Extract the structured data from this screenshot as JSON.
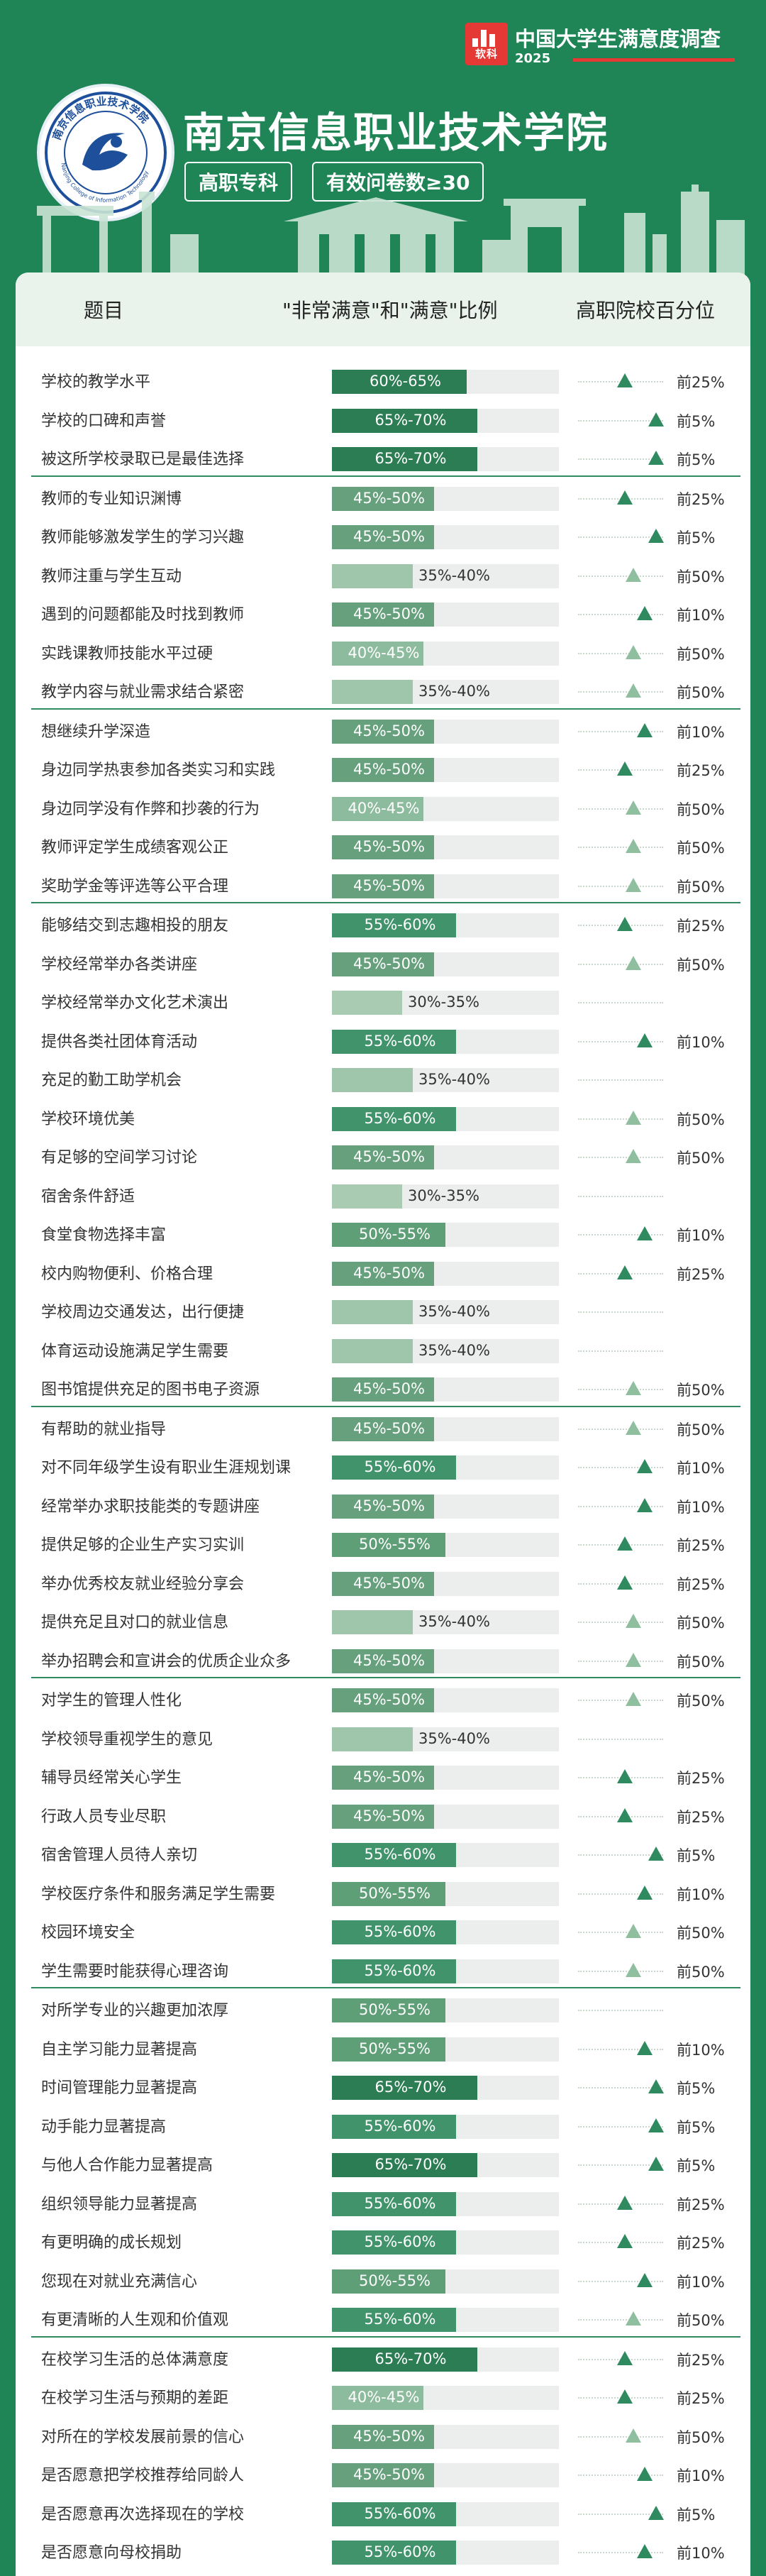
{
  "brand": {
    "logo_text": "软科",
    "title": "中国大学生满意度调查",
    "year": "2025"
  },
  "school": {
    "name": "南京信息职业技术学院",
    "seal_text": "南京信息职业技术学院",
    "seal_text_en": "Nanjing College of Information Technology",
    "tag_level": "高职专科",
    "tag_sample": "有效问卷数≥30"
  },
  "table": {
    "col_question": "题目",
    "col_ratio": "\"非常满意\"和\"满意\"比例",
    "col_percentile": "高职院校百分位"
  },
  "colors": {
    "background": "#1f8557",
    "bar_65_70": "#2c7d54",
    "bar_60_65": "#2c7d54",
    "bar_55_60": "#40936a",
    "bar_50_55": "#5f9f78",
    "bar_45_50": "#66a07d",
    "bar_40_45": "#8dbb9d",
    "bar_35_40": "#9fc5aa",
    "bar_30_35": "#a9cbb2",
    "triangle_strong": "#2f8a5f",
    "triangle_light": "#8fbf9f",
    "accent": "#e53935"
  },
  "rows": [
    {
      "q": "学校的教学水平",
      "r": "60%-65%",
      "p": "前25%",
      "g": 1
    },
    {
      "q": "学校的口碑和声誉",
      "r": "65%-70%",
      "p": "前5%"
    },
    {
      "q": "被这所学校录取已是最佳选择",
      "r": "65%-70%",
      "p": "前5%"
    },
    {
      "q": "教师的专业知识渊博",
      "r": "45%-50%",
      "p": "前25%",
      "g": 1
    },
    {
      "q": "教师能够激发学生的学习兴趣",
      "r": "45%-50%",
      "p": "前5%"
    },
    {
      "q": "教师注重与学生互动",
      "r": "35%-40%",
      "p": "前50%"
    },
    {
      "q": "遇到的问题都能及时找到教师",
      "r": "45%-50%",
      "p": "前10%"
    },
    {
      "q": "实践课教师技能水平过硬",
      "r": "40%-45%",
      "p": "前50%"
    },
    {
      "q": "教学内容与就业需求结合紧密",
      "r": "35%-40%",
      "p": "前50%"
    },
    {
      "q": "想继续升学深造",
      "r": "45%-50%",
      "p": "前10%",
      "g": 1
    },
    {
      "q": "身边同学热衷参加各类实习和实践",
      "r": "45%-50%",
      "p": "前25%"
    },
    {
      "q": "身边同学没有作弊和抄袭的行为",
      "r": "40%-45%",
      "p": "前50%"
    },
    {
      "q": "教师评定学生成绩客观公正",
      "r": "45%-50%",
      "p": "前50%"
    },
    {
      "q": "奖助学金等评选等公平合理",
      "r": "45%-50%",
      "p": "前50%"
    },
    {
      "q": "能够结交到志趣相投的朋友",
      "r": "55%-60%",
      "p": "前25%",
      "g": 1
    },
    {
      "q": "学校经常举办各类讲座",
      "r": "45%-50%",
      "p": "前50%"
    },
    {
      "q": "学校经常举办文化艺术演出",
      "r": "30%-35%",
      "p": ""
    },
    {
      "q": "提供各类社团体育活动",
      "r": "55%-60%",
      "p": "前10%"
    },
    {
      "q": "充足的勤工助学机会",
      "r": "35%-40%",
      "p": ""
    },
    {
      "q": "学校环境优美",
      "r": "55%-60%",
      "p": "前50%"
    },
    {
      "q": "有足够的空间学习讨论",
      "r": "45%-50%",
      "p": "前50%"
    },
    {
      "q": "宿舍条件舒适",
      "r": "30%-35%",
      "p": ""
    },
    {
      "q": "食堂食物选择丰富",
      "r": "50%-55%",
      "p": "前10%"
    },
    {
      "q": "校内购物便利、价格合理",
      "r": "45%-50%",
      "p": "前25%"
    },
    {
      "q": "学校周边交通发达，出行便捷",
      "r": "35%-40%",
      "p": ""
    },
    {
      "q": "体育运动设施满足学生需要",
      "r": "35%-40%",
      "p": ""
    },
    {
      "q": "图书馆提供充足的图书电子资源",
      "r": "45%-50%",
      "p": "前50%"
    },
    {
      "q": "有帮助的就业指导",
      "r": "45%-50%",
      "p": "前50%",
      "g": 1
    },
    {
      "q": "对不同年级学生设有职业生涯规划课",
      "r": "55%-60%",
      "p": "前10%"
    },
    {
      "q": "经常举办求职技能类的专题讲座",
      "r": "45%-50%",
      "p": "前10%"
    },
    {
      "q": "提供足够的企业生产实习实训",
      "r": "50%-55%",
      "p": "前25%"
    },
    {
      "q": "举办优秀校友就业经验分享会",
      "r": "45%-50%",
      "p": "前25%"
    },
    {
      "q": "提供充足且对口的就业信息",
      "r": "35%-40%",
      "p": "前50%"
    },
    {
      "q": "举办招聘会和宣讲会的优质企业众多",
      "r": "45%-50%",
      "p": "前50%"
    },
    {
      "q": "对学生的管理人性化",
      "r": "45%-50%",
      "p": "前50%",
      "g": 1
    },
    {
      "q": "学校领导重视学生的意见",
      "r": "35%-40%",
      "p": ""
    },
    {
      "q": "辅导员经常关心学生",
      "r": "45%-50%",
      "p": "前25%"
    },
    {
      "q": "行政人员专业尽职",
      "r": "45%-50%",
      "p": "前25%"
    },
    {
      "q": "宿舍管理人员待人亲切",
      "r": "55%-60%",
      "p": "前5%"
    },
    {
      "q": "学校医疗条件和服务满足学生需要",
      "r": "50%-55%",
      "p": "前10%"
    },
    {
      "q": "校园环境安全",
      "r": "55%-60%",
      "p": "前50%"
    },
    {
      "q": "学生需要时能获得心理咨询",
      "r": "55%-60%",
      "p": "前50%"
    },
    {
      "q": "对所学专业的兴趣更加浓厚",
      "r": "50%-55%",
      "p": "",
      "g": 1
    },
    {
      "q": "自主学习能力显著提高",
      "r": "50%-55%",
      "p": "前10%"
    },
    {
      "q": "时间管理能力显著提高",
      "r": "65%-70%",
      "p": "前5%"
    },
    {
      "q": "动手能力显著提高",
      "r": "55%-60%",
      "p": "前5%"
    },
    {
      "q": "与他人合作能力显著提高",
      "r": "65%-70%",
      "p": "前5%"
    },
    {
      "q": "组织领导能力显著提高",
      "r": "55%-60%",
      "p": "前25%"
    },
    {
      "q": "有更明确的成长规划",
      "r": "55%-60%",
      "p": "前25%"
    },
    {
      "q": "您现在对就业充满信心",
      "r": "50%-55%",
      "p": "前10%"
    },
    {
      "q": "有更清晰的人生观和价值观",
      "r": "55%-60%",
      "p": "前50%"
    },
    {
      "q": "在校学习生活的总体满意度",
      "r": "65%-70%",
      "p": "前25%",
      "g": 1
    },
    {
      "q": "在校学习生活与预期的差距",
      "r": "40%-45%",
      "p": "前25%"
    },
    {
      "q": "对所在的学校发展前景的信心",
      "r": "45%-50%",
      "p": "前50%"
    },
    {
      "q": "是否愿意把学校推荐给同龄人",
      "r": "45%-50%",
      "p": "前10%"
    },
    {
      "q": "是否愿意再次选择现在的学校",
      "r": "55%-60%",
      "p": "前5%"
    },
    {
      "q": "是否愿意向母校捐助",
      "r": "55%-60%",
      "p": "前10%"
    }
  ]
}
